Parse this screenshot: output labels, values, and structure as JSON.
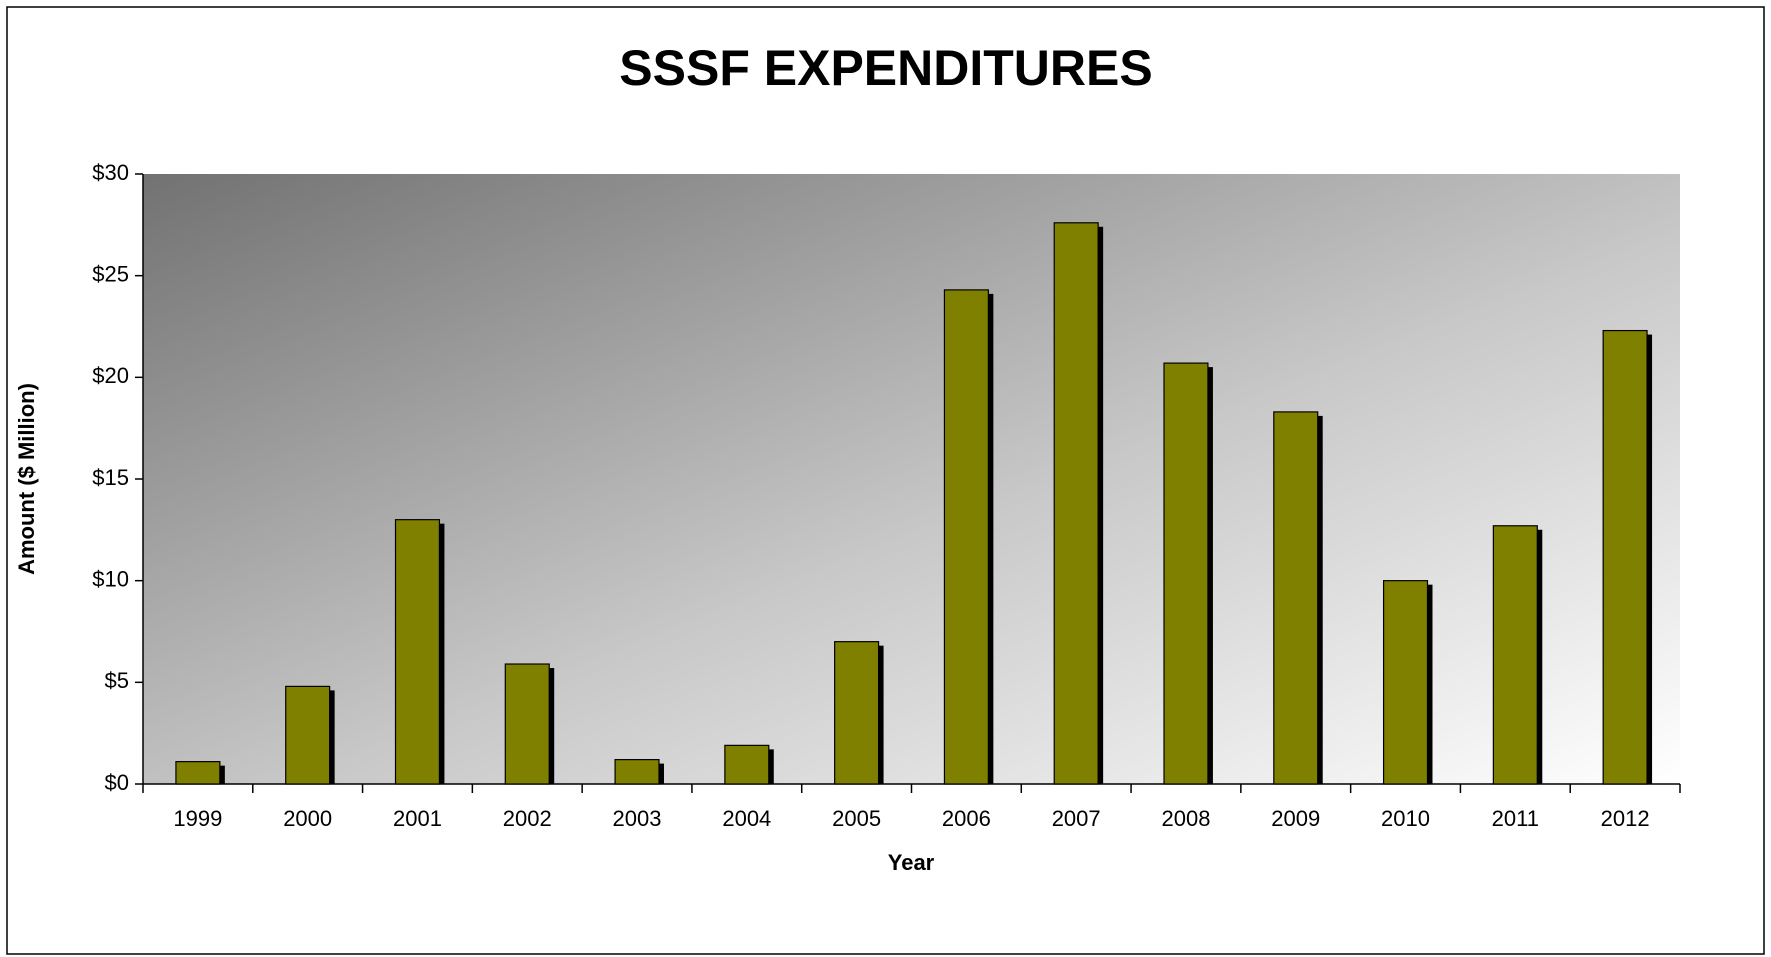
{
  "chart_data": {
    "type": "bar",
    "title": "SSSF EXPENDITURES",
    "x_label": "Year",
    "y_label": "Amount ($ Million)",
    "categories": [
      "1999",
      "2000",
      "2001",
      "2002",
      "2003",
      "2004",
      "2005",
      "2006",
      "2007",
      "2008",
      "2009",
      "2010",
      "2011",
      "2012"
    ],
    "values": [
      1.1,
      4.8,
      13.0,
      5.9,
      1.2,
      1.9,
      7.0,
      24.3,
      27.6,
      20.7,
      18.3,
      10.0,
      12.7,
      22.3
    ],
    "color": "#808000",
    "ylim": [
      0,
      30
    ],
    "yticks": [
      {
        "value": 0,
        "label": "$0"
      },
      {
        "value": 5,
        "label": "$5"
      },
      {
        "value": 10,
        "label": "$10"
      },
      {
        "value": 15,
        "label": "$15"
      },
      {
        "value": 20,
        "label": "$20"
      },
      {
        "value": 25,
        "label": "$25"
      },
      {
        "value": 30,
        "label": "$30"
      }
    ],
    "grid": false
  }
}
